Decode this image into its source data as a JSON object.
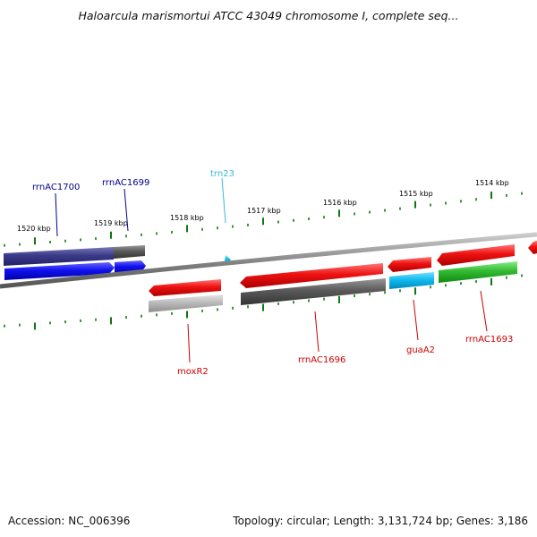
{
  "title": "Haloarcula marismortui ATCC 43049 chromosome I, complete seq...",
  "footer": {
    "accession": "Accession: NC_006396",
    "summary": "Topology: circular; Length: 3,131,724 bp; Genes: 3,186"
  },
  "tick_labels": [
    "1520 kbp",
    "1519 kbp",
    "1518 kbp",
    "1517 kbp",
    "1516 kbp",
    "1515 kbp",
    "1514 kbp"
  ],
  "genes": [
    {
      "name": "rrnAC1700",
      "color": "#00008b"
    },
    {
      "name": "rrnAC1699",
      "color": "#00008b"
    },
    {
      "name": "trn23",
      "color": "#33bbdd"
    },
    {
      "name": "moxR2",
      "color": "#cc0000"
    },
    {
      "name": "rrnAC1696",
      "color": "#cc0000"
    },
    {
      "name": "guaA2",
      "color": "#cc0000"
    },
    {
      "name": "rrnAC1693",
      "color": "#cc0000"
    }
  ],
  "colors": {
    "red": "#ee1111",
    "blue": "#1111ee",
    "navy": "#3a3a8a",
    "dark_gray": "#5a5a5a",
    "light_gray": "#bbbbbb",
    "cyan": "#11bbee",
    "green": "#33bb33",
    "tick": "#117711",
    "backbone": "#888888"
  }
}
